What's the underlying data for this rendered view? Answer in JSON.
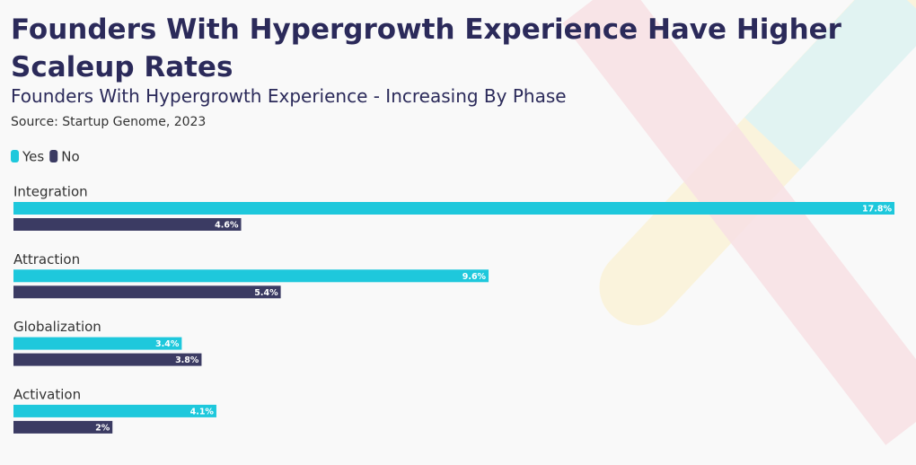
{
  "chart_data": {
    "type": "bar",
    "orientation": "horizontal",
    "title": "Founders With Hypergrowth Experience Have Higher Scaleup Rates",
    "subtitle": "Founders With Hypergrowth Experience - Increasing By Phase",
    "source": "Source: Startup Genome, 2023",
    "categories": [
      "Integration",
      "Attraction",
      "Globalization",
      "Activation"
    ],
    "series": [
      {
        "name": "Yes",
        "color": "#1ec8dc",
        "values": [
          17.8,
          9.6,
          3.4,
          4.1
        ],
        "value_labels": [
          "17.8%",
          "9.6%",
          "3.4%",
          "4.1%"
        ]
      },
      {
        "name": "No",
        "color": "#3b3b63",
        "values": [
          4.6,
          5.4,
          3.8,
          2
        ],
        "value_labels": [
          "4.6%",
          "5.4%",
          "3.8%",
          "2%"
        ]
      }
    ],
    "legend": "top-left"
  }
}
